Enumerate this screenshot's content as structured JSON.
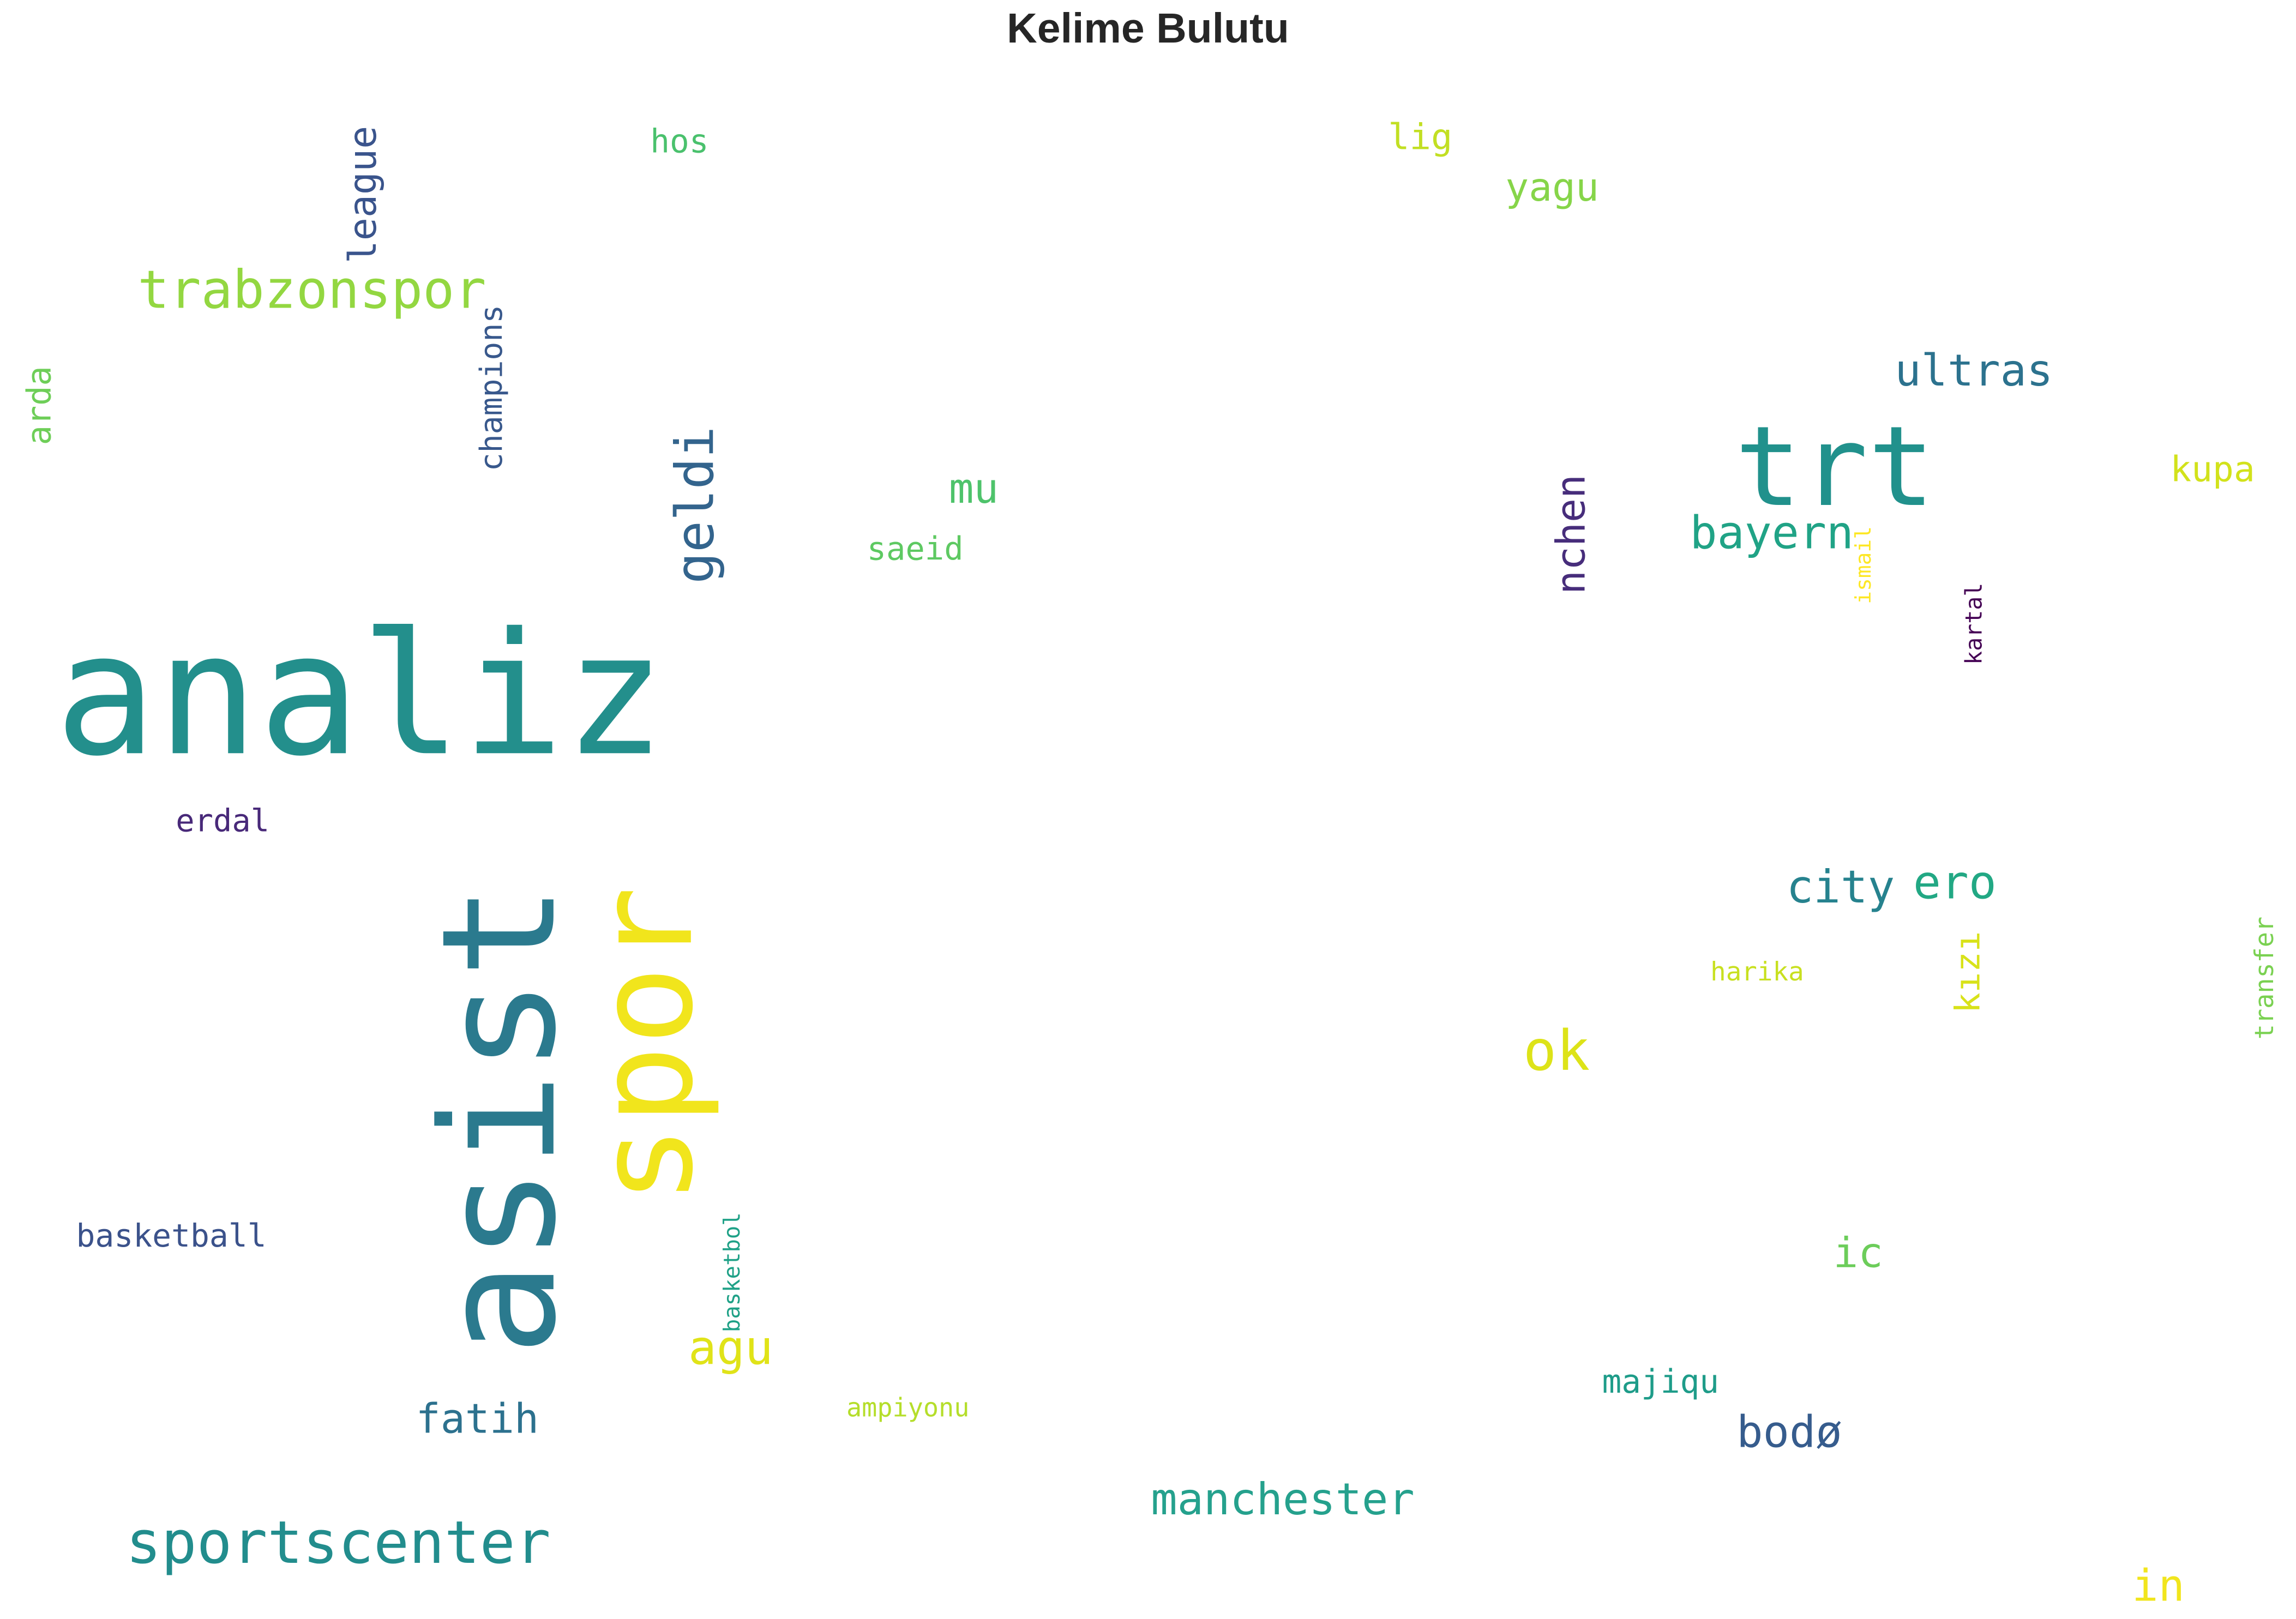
{
  "title": "Kelime Bulutu",
  "words": [
    {
      "text": "analiz",
      "color": "#238f8c"
    },
    {
      "text": "asist",
      "color": "#2b7a8e"
    },
    {
      "text": "spor",
      "color": "#f1e51c"
    },
    {
      "text": "trt",
      "color": "#21918c"
    },
    {
      "text": "geldi",
      "color": "#33648d"
    },
    {
      "text": "trabzonspor",
      "color": "#93d741"
    },
    {
      "text": "sportscenter",
      "color": "#228d8d"
    },
    {
      "text": "league",
      "color": "#3a548c"
    },
    {
      "text": "champions",
      "color": "#38588c"
    },
    {
      "text": "hos",
      "color": "#4ac16d"
    },
    {
      "text": "arda",
      "color": "#6ece58"
    },
    {
      "text": "erdal",
      "color": "#482979"
    },
    {
      "text": "basketball",
      "color": "#3b528b"
    },
    {
      "text": "basketbol",
      "color": "#1fa187"
    },
    {
      "text": "agu",
      "color": "#e0e318"
    },
    {
      "text": "fatih",
      "color": "#2c718e"
    },
    {
      "text": "mu",
      "color": "#4ec36b"
    },
    {
      "text": "saeid",
      "color": "#5ec962"
    },
    {
      "text": "ampiyonu",
      "color": "#b5de2b"
    },
    {
      "text": "manchester",
      "color": "#25a18d"
    },
    {
      "text": "lig",
      "color": "#c2df23"
    },
    {
      "text": "yagu",
      "color": "#86d549"
    },
    {
      "text": "nchen",
      "color": "#472d7b"
    },
    {
      "text": "bayern",
      "color": "#20a386"
    },
    {
      "text": "ultras",
      "color": "#2c728e"
    },
    {
      "text": "ismail",
      "color": "#fde725"
    },
    {
      "text": "kartal",
      "color": "#440154"
    },
    {
      "text": "kupa",
      "color": "#d2e21b"
    },
    {
      "text": "city",
      "color": "#26828e"
    },
    {
      "text": "ero",
      "color": "#22a884"
    },
    {
      "text": "ok",
      "color": "#dde318"
    },
    {
      "text": "harika",
      "color": "#c8e020"
    },
    {
      "text": "kızı",
      "color": "#d8e219"
    },
    {
      "text": "transfer",
      "color": "#7ad151"
    },
    {
      "text": "ic",
      "color": "#6ccd5a"
    },
    {
      "text": "majiqu",
      "color": "#1e9c89"
    },
    {
      "text": "bodø",
      "color": "#365c8d"
    },
    {
      "text": "in",
      "color": "#f1e51d"
    }
  ]
}
